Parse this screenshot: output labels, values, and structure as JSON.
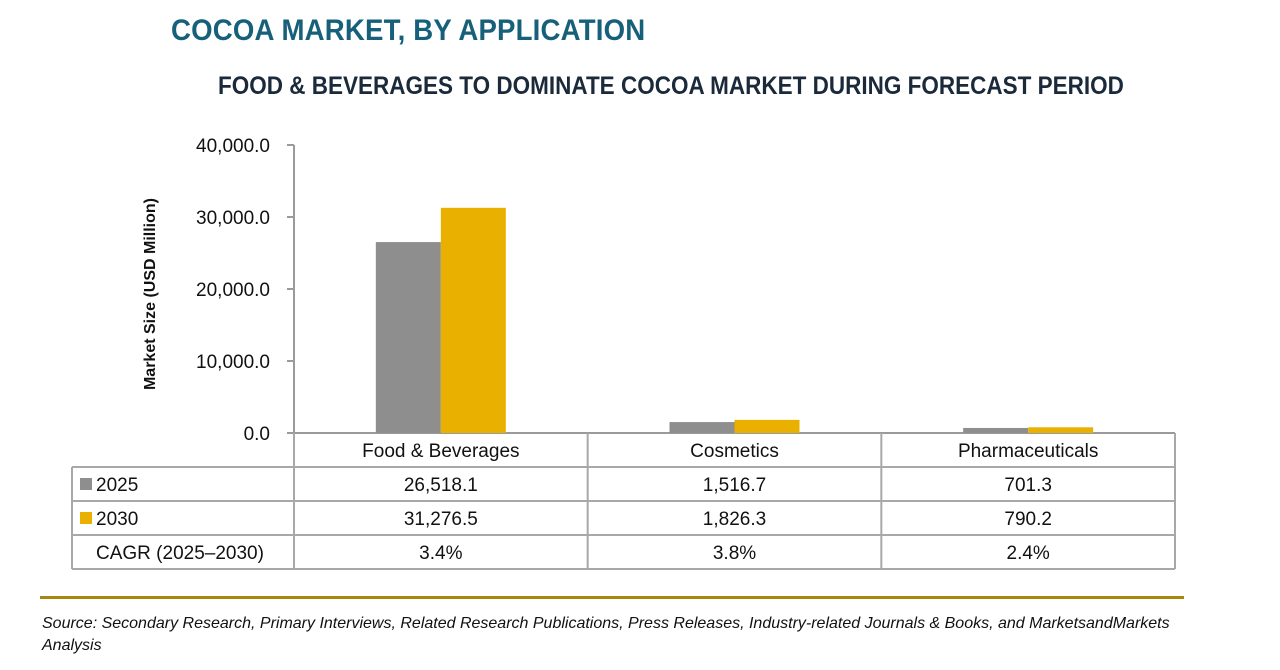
{
  "header": {
    "title": "COCOA MARKET, BY APPLICATION",
    "subtitle": "FOOD & BEVERAGES TO DOMINATE COCOA MARKET DURING FORECAST PERIOD"
  },
  "chart_data": {
    "type": "bar",
    "title": "COCOA MARKET, BY APPLICATION",
    "subtitle": "FOOD & BEVERAGES TO DOMINATE COCOA MARKET DURING FORECAST PERIOD",
    "xlabel": "",
    "ylabel": "Market Size (USD Million)",
    "ylim": [
      0,
      40000
    ],
    "yticks": [
      0,
      10000,
      20000,
      30000,
      40000
    ],
    "ytick_labels": [
      "0.0",
      "10,000.0",
      "20,000.0",
      "30,000.0",
      "40,000.0"
    ],
    "grid": false,
    "legend": "embedded-in-table-left",
    "categories": [
      "Food & Beverages",
      "Cosmetics",
      "Pharmaceuticals"
    ],
    "series": [
      {
        "name": "2025",
        "color": "#8e8e8e",
        "values": [
          26518.1,
          1516.7,
          701.3
        ],
        "labels": [
          "26,518.1",
          "1,516.7",
          "701.3"
        ]
      },
      {
        "name": "2030",
        "color": "#eab000",
        "values": [
          31276.5,
          1826.3,
          790.2
        ],
        "labels": [
          "31,276.5",
          "1,826.3",
          "790.2"
        ]
      }
    ],
    "table_extra_row": {
      "label": "CAGR (2025–2030)",
      "values": [
        "3.4%",
        "3.8%",
        "2.4%"
      ]
    }
  },
  "footer": {
    "source": "Source: Secondary Research, Primary Interviews, Related Research Publications, Press Releases, Industry-related Journals & Books, and MarketsandMarkets Analysis"
  }
}
